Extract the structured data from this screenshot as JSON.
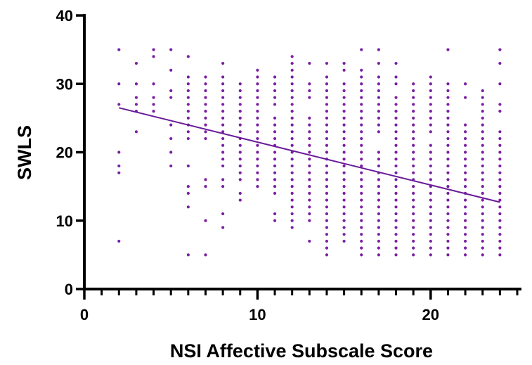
{
  "chart_data": {
    "type": "scatter",
    "title": "",
    "xlabel": "NSI Affective Subscale Score",
    "ylabel": "SWLS",
    "xlim": [
      0,
      25
    ],
    "ylim": [
      0,
      40
    ],
    "x_ticks": [
      0,
      10,
      20
    ],
    "y_ticks": [
      0,
      10,
      20,
      30,
      40
    ],
    "x_tick_labels": [
      "0",
      "10",
      "20"
    ],
    "y_tick_labels": [
      "0",
      "10",
      "20",
      "30",
      "40"
    ],
    "x_minor_step": 1,
    "grid": false,
    "legend": "none",
    "point_color": "#7B1FA2",
    "line_color": "#6A1B9A",
    "regression_line": {
      "x": [
        2,
        24
      ],
      "y": [
        26.5,
        12.7
      ]
    },
    "points_by_x": [
      {
        "x": 2,
        "y": [
          35,
          30,
          27,
          20,
          18,
          17,
          7
        ]
      },
      {
        "x": 3,
        "y": [
          33,
          30,
          28,
          27,
          26,
          23
        ]
      },
      {
        "x": 4,
        "y": [
          35,
          34,
          30,
          28,
          27,
          26
        ]
      },
      {
        "x": 5,
        "y": [
          35,
          32,
          29,
          28,
          24,
          22,
          20,
          18
        ]
      },
      {
        "x": 6,
        "y": [
          34,
          31,
          30,
          29,
          28,
          27,
          26,
          25,
          24,
          23,
          22,
          18,
          15,
          14,
          12,
          5
        ]
      },
      {
        "x": 7,
        "y": [
          31,
          30,
          29,
          28,
          27,
          26,
          25,
          24,
          23,
          22,
          16,
          15,
          10,
          5
        ]
      },
      {
        "x": 8,
        "y": [
          33,
          31,
          30,
          29,
          28,
          27,
          26,
          25,
          24,
          23,
          22,
          21,
          20,
          19,
          18,
          16,
          15,
          11,
          9
        ]
      },
      {
        "x": 9,
        "y": [
          30,
          29,
          28,
          27,
          26,
          25,
          24,
          23,
          22,
          21,
          20,
          19,
          18,
          17,
          16,
          14,
          13
        ]
      },
      {
        "x": 10,
        "y": [
          32,
          31,
          30,
          29,
          28,
          27,
          26,
          25,
          24,
          23,
          22,
          21,
          20,
          19,
          18,
          17,
          16,
          15
        ]
      },
      {
        "x": 11,
        "y": [
          31,
          30,
          29,
          28,
          27,
          25,
          24,
          23,
          22,
          21,
          20,
          19,
          18,
          17,
          16,
          15,
          14,
          11,
          10
        ]
      },
      {
        "x": 12,
        "y": [
          34,
          33,
          32,
          31,
          30,
          29,
          28,
          27,
          26,
          25,
          24,
          23,
          22,
          21,
          20,
          19,
          18,
          17,
          16,
          15,
          14,
          13,
          12,
          11,
          10,
          9
        ]
      },
      {
        "x": 13,
        "y": [
          33,
          30,
          29,
          28,
          25,
          24,
          23,
          22,
          21,
          20,
          19,
          18,
          17,
          16,
          15,
          14,
          13,
          12,
          11,
          10,
          7
        ]
      },
      {
        "x": 14,
        "y": [
          33,
          31,
          30,
          29,
          28,
          27,
          26,
          25,
          24,
          23,
          22,
          21,
          20,
          19,
          18,
          17,
          16,
          15,
          14,
          13,
          12,
          11,
          10,
          9,
          8,
          7,
          6,
          5
        ]
      },
      {
        "x": 15,
        "y": [
          33,
          32,
          30,
          29,
          28,
          27,
          26,
          25,
          24,
          23,
          22,
          21,
          20,
          19,
          18,
          17,
          16,
          15,
          14,
          13,
          12,
          11,
          10,
          9,
          8,
          7
        ]
      },
      {
        "x": 16,
        "y": [
          35,
          32,
          31,
          30,
          29,
          28,
          27,
          26,
          25,
          24,
          23,
          22,
          21,
          20,
          19,
          18,
          17,
          16,
          15,
          14,
          13,
          12,
          11,
          10,
          9,
          8,
          7,
          6,
          5
        ]
      },
      {
        "x": 17,
        "y": [
          35,
          33,
          31,
          30,
          29,
          28,
          27,
          26,
          25,
          24,
          23,
          20,
          19,
          18,
          17,
          16,
          15,
          14,
          13,
          12,
          11,
          10,
          9,
          8,
          7,
          6,
          5
        ]
      },
      {
        "x": 18,
        "y": [
          33,
          31,
          30,
          28,
          27,
          26,
          25,
          24,
          23,
          22,
          21,
          20,
          19,
          18,
          17,
          16,
          15,
          14,
          13,
          12,
          11,
          10,
          9,
          8,
          7,
          6,
          5
        ]
      },
      {
        "x": 19,
        "y": [
          30,
          29,
          28,
          27,
          26,
          25,
          24,
          23,
          22,
          21,
          20,
          19,
          18,
          17,
          16,
          15,
          14,
          13,
          12,
          11,
          10,
          9,
          8,
          7,
          6,
          5
        ]
      },
      {
        "x": 20,
        "y": [
          31,
          30,
          29,
          28,
          27,
          26,
          25,
          24,
          23,
          21,
          20,
          19,
          18,
          17,
          16,
          15,
          14,
          13,
          12,
          11,
          10,
          9,
          8,
          7,
          6,
          5
        ]
      },
      {
        "x": 21,
        "y": [
          35,
          30,
          29,
          28,
          27,
          26,
          25,
          24,
          23,
          22,
          21,
          20,
          19,
          18,
          17,
          16,
          15,
          14,
          13,
          12,
          11,
          10,
          9,
          8,
          7,
          6,
          5
        ]
      },
      {
        "x": 22,
        "y": [
          30,
          28,
          24,
          23,
          22,
          21,
          20,
          19,
          18,
          17,
          16,
          15,
          14,
          13,
          12,
          11,
          10,
          9,
          8,
          7,
          6,
          5
        ]
      },
      {
        "x": 23,
        "y": [
          29,
          28,
          27,
          26,
          25,
          24,
          23,
          22,
          21,
          20,
          19,
          18,
          17,
          16,
          15,
          14,
          13,
          12,
          11,
          10,
          9,
          8,
          7,
          6,
          5
        ]
      },
      {
        "x": 24,
        "y": [
          35,
          33,
          30,
          27,
          26,
          23,
          22,
          21,
          20,
          19,
          18,
          17,
          16,
          15,
          14,
          13,
          12,
          11,
          10,
          9,
          8,
          7,
          6,
          5
        ]
      }
    ]
  }
}
